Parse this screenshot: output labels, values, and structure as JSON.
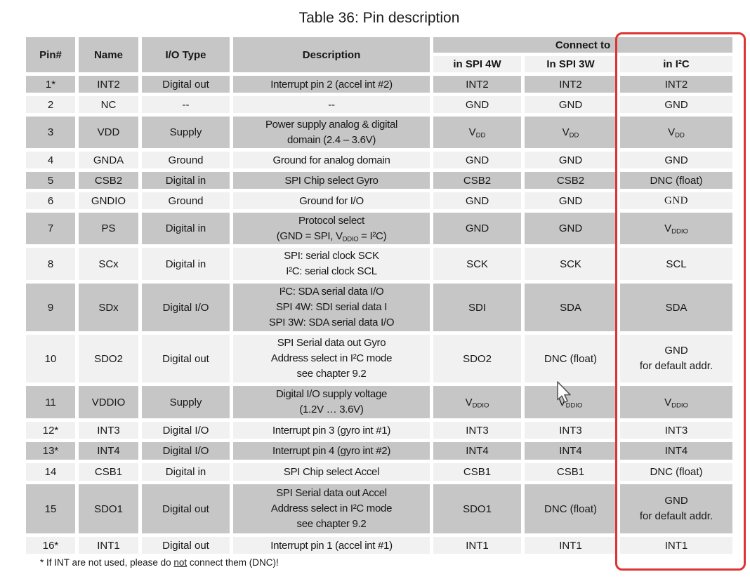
{
  "title": "Table 36: Pin description",
  "colors": {
    "row_gray": "#c6c6c6",
    "row_light": "#f1f1f1",
    "highlight_red": "#dd3333",
    "serif_text": "#4c4c4c"
  },
  "icons": {
    "cursor": "arrow-pointer"
  },
  "table": {
    "headers": {
      "pin": "Pin#",
      "name": "Name",
      "io_type": "I/O Type",
      "description": "Description",
      "connect_to": "Connect to",
      "sub_columns": [
        "in SPI 4W",
        "In SPI 3W",
        "in I²C"
      ]
    },
    "rows": [
      {
        "pin": "1*",
        "name": "INT2",
        "io": "Digital out",
        "desc": "Interrupt pin 2 (accel int #2)",
        "spi4w": "INT2",
        "spi3w": "INT2",
        "i2c": "INT2"
      },
      {
        "pin": "2",
        "name": "NC",
        "io": "--",
        "desc": "--",
        "spi4w": "GND",
        "spi3w": "GND",
        "i2c": "GND"
      },
      {
        "pin": "3",
        "name": "VDD",
        "io": "Supply",
        "desc": [
          "Power supply analog & digital",
          "domain (2.4 – 3.6V)"
        ],
        "spi4w": "V_{DD}",
        "spi3w": "V_{DD}",
        "i2c": "V_{DD}"
      },
      {
        "pin": "4",
        "name": "GNDA",
        "io": "Ground",
        "desc": "Ground for analog domain",
        "spi4w": "GND",
        "spi3w": "GND",
        "i2c": "GND"
      },
      {
        "pin": "5",
        "name": "CSB2",
        "io": "Digital in",
        "desc": "SPI Chip select Gyro",
        "spi4w": "CSB2",
        "spi3w": "CSB2",
        "i2c": "DNC (float)"
      },
      {
        "pin": "6",
        "name": "GNDIO",
        "io": "Ground",
        "desc": "Ground for I/O",
        "spi4w": "GND",
        "spi3w": "GND",
        "i2c": "GND",
        "i2c_serif": true
      },
      {
        "pin": "7",
        "name": "PS",
        "io": "Digital in",
        "desc": [
          "Protocol select",
          "(GND = SPI, V_{DDIO} = I²C)"
        ],
        "spi4w": "GND",
        "spi3w": "GND",
        "i2c": "V_{DDIO}"
      },
      {
        "pin": "8",
        "name": "SCx",
        "io": "Digital in",
        "desc": [
          "SPI: serial clock SCK",
          "I²C: serial clock SCL"
        ],
        "spi4w": "SCK",
        "spi3w": "SCK",
        "i2c": "SCL"
      },
      {
        "pin": "9",
        "name": "SDx",
        "io": "Digital I/O",
        "desc": [
          "I²C: SDA serial data I/O",
          "SPI 4W: SDI serial data I",
          "SPI 3W: SDA serial data I/O"
        ],
        "spi4w": "SDI",
        "spi3w": "SDA",
        "i2c": "SDA"
      },
      {
        "pin": "10",
        "name": "SDO2",
        "io": "Digital out",
        "desc": [
          "SPI Serial data out Gyro",
          "Address select in I²C mode",
          "see chapter 9.2"
        ],
        "spi4w": "SDO2",
        "spi3w": "DNC (float)",
        "i2c": [
          "GND",
          "for default addr."
        ]
      },
      {
        "pin": "11",
        "name": "VDDIO",
        "io": "Supply",
        "desc": [
          "Digital I/O supply voltage",
          "(1.2V … 3.6V)"
        ],
        "spi4w": "V_{DDIO}",
        "spi3w": "V_{DDIO}",
        "i2c": "V_{DDIO}"
      },
      {
        "pin": "12*",
        "name": "INT3",
        "io": "Digital I/O",
        "desc": "Interrupt pin 3 (gyro int #1)",
        "spi4w": "INT3",
        "spi3w": "INT3",
        "i2c": "INT3"
      },
      {
        "pin": "13*",
        "name": "INT4",
        "io": "Digital I/O",
        "desc": "Interrupt pin 4 (gyro int #2)",
        "spi4w": "INT4",
        "spi3w": "INT4",
        "i2c": "INT4"
      },
      {
        "pin": "14",
        "name": "CSB1",
        "io": "Digital in",
        "desc": "SPI Chip select Accel",
        "spi4w": "CSB1",
        "spi3w": "CSB1",
        "i2c": "DNC (float)"
      },
      {
        "pin": "15",
        "name": "SDO1",
        "io": "Digital out",
        "desc": [
          "SPI Serial data out Accel",
          "Address select in I²C mode",
          "see chapter 9.2"
        ],
        "spi4w": "SDO1",
        "spi3w": "DNC (float)",
        "i2c": [
          "GND",
          "for default addr."
        ]
      },
      {
        "pin": "16*",
        "name": "INT1",
        "io": "Digital out",
        "desc": "Interrupt pin 1 (accel int #1)",
        "spi4w": "INT1",
        "spi3w": "INT1",
        "i2c": "INT1"
      }
    ]
  },
  "footnote": {
    "pre": "* If INT are not used, please do ",
    "underline": "not",
    "post": " connect them (DNC)!"
  }
}
